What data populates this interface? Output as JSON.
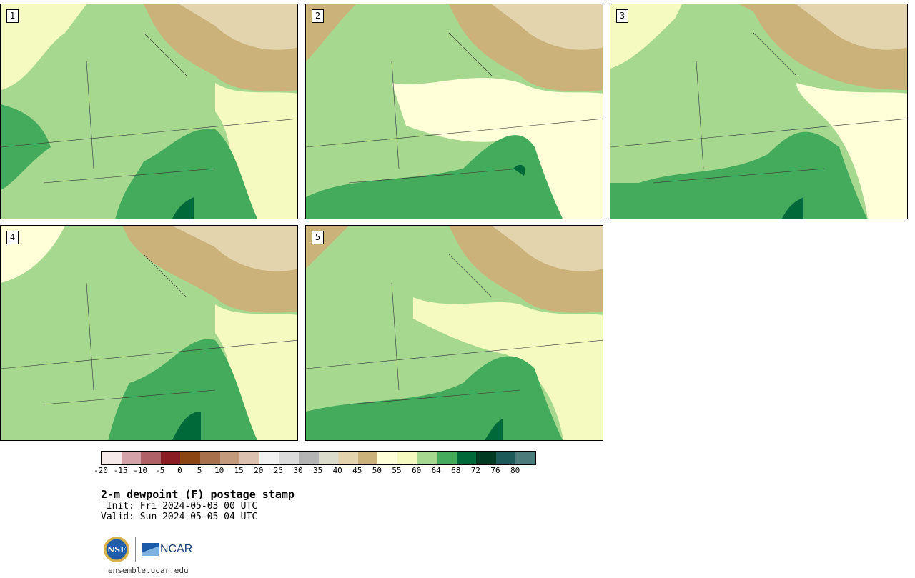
{
  "panels": [
    {
      "label": "1"
    },
    {
      "label": "2"
    },
    {
      "label": "3"
    },
    {
      "label": "4"
    },
    {
      "label": "5"
    }
  ],
  "colorbar": {
    "colors": [
      "#f5e9e9",
      "#d4a2a8",
      "#b06067",
      "#8b1c24",
      "#8b4513",
      "#a8714b",
      "#c49a7d",
      "#dcc0b0",
      "#f2f2f2",
      "#dcdcdc",
      "#b4b4b4",
      "#dcdccc",
      "#e3d4ae",
      "#cbb27a",
      "#ffffd8",
      "#f5fac0",
      "#a6d98f",
      "#44aa5c",
      "#00693a",
      "#003a21",
      "#1c5a5a",
      "#4b7b7b"
    ],
    "ticks": [
      "-20",
      "-15",
      "-10",
      "-5",
      "0",
      "5",
      "10",
      "15",
      "20",
      "25",
      "30",
      "35",
      "40",
      "45",
      "50",
      "55",
      "60",
      "64",
      "68",
      "72",
      "76",
      "80"
    ]
  },
  "title": "2-m dewpoint (F) postage stamp",
  "init_line": " Init: Fri 2024-05-03 00 UTC",
  "valid_line": "Valid: Sun 2024-05-05 04 UTC",
  "logos": {
    "nsf": "NSF",
    "ncar": "NCAR"
  },
  "site": "ensemble.ucar.edu"
}
